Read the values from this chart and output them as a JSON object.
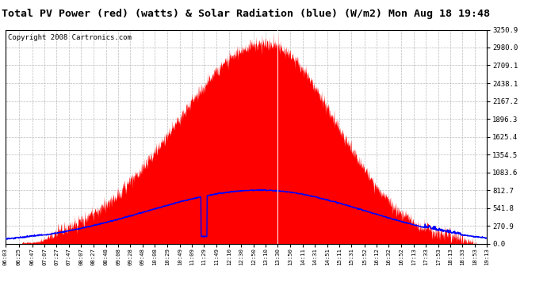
{
  "title": "Total PV Power (red) (watts) & Solar Radiation (blue) (W/m2) Mon Aug 18 19:48",
  "copyright": "Copyright 2008 Cartronics.com",
  "background_color": "#ffffff",
  "plot_bg_color": "#ffffff",
  "yticks": [
    0.0,
    270.9,
    541.8,
    812.7,
    1083.6,
    1354.5,
    1625.4,
    1896.3,
    2167.2,
    2438.1,
    2709.1,
    2980.0,
    3250.9
  ],
  "ymax": 3250.9,
  "ymin": 0.0,
  "pv_color": "#ff0000",
  "solar_color": "#0000ff",
  "grid_color": "#bbbbbb",
  "title_fontsize": 9.5,
  "copyright_fontsize": 6.5,
  "tick_labels": [
    "06:03",
    "06:25",
    "06:47",
    "07:07",
    "07:27",
    "07:47",
    "08:07",
    "08:27",
    "08:48",
    "09:08",
    "09:28",
    "09:48",
    "10:08",
    "10:29",
    "10:49",
    "11:09",
    "11:29",
    "11:49",
    "12:10",
    "12:30",
    "12:50",
    "13:10",
    "13:30",
    "13:50",
    "14:11",
    "14:31",
    "14:51",
    "15:11",
    "15:31",
    "15:52",
    "16:12",
    "16:32",
    "16:52",
    "17:13",
    "17:33",
    "17:53",
    "18:13",
    "18:33",
    "18:53",
    "19:13"
  ]
}
